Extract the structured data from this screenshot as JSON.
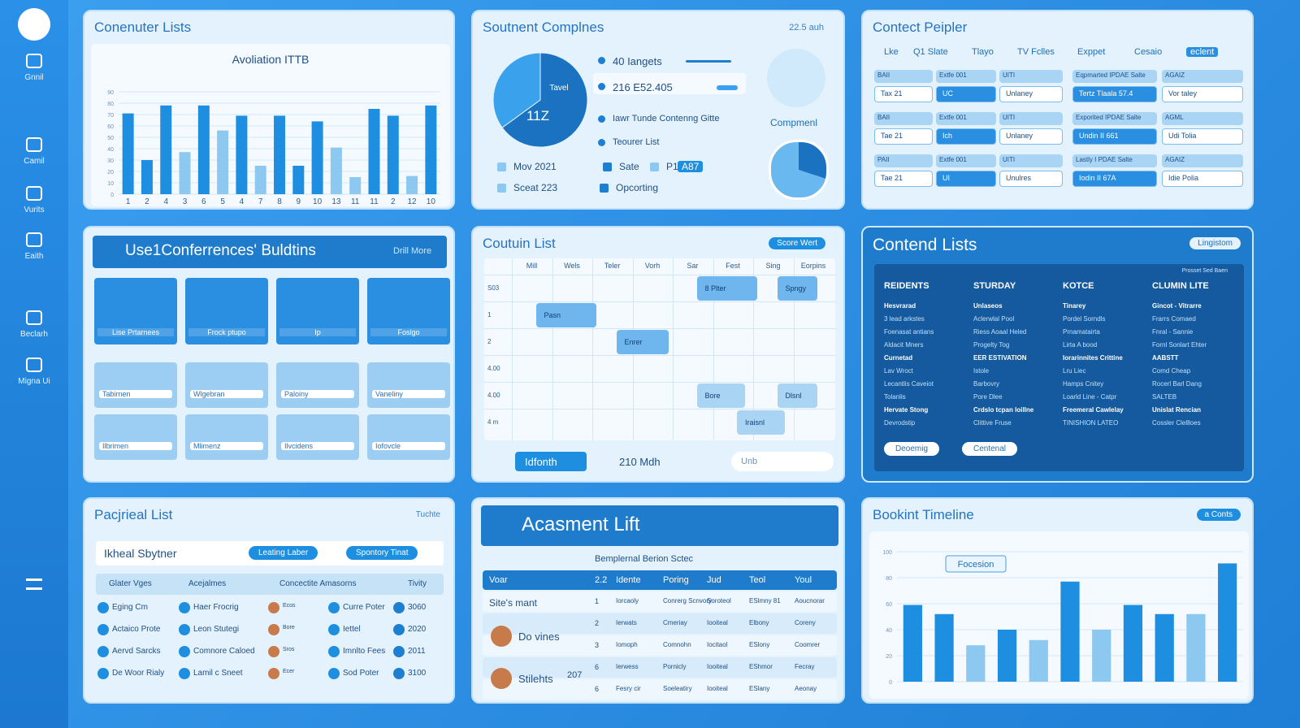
{
  "sidebar": [
    "Gnnil",
    "Camil",
    "Vurits",
    "Eaith",
    "Beclarh",
    "Migna Ui"
  ],
  "computer_lists": {
    "title": "Conenuter Lists"
  },
  "complines": {
    "title": "Soutnent Complnes",
    "badge": "22.5 auh",
    "items": [
      "40 Iangets",
      "216 E52.405",
      "Iawr Tunde Contenng Gitte",
      "Teourer List"
    ],
    "legend": [
      "Mov 2021",
      "Sate",
      "P1",
      "A87",
      "Sceat 223",
      "Opcorting"
    ],
    "side_label": "Compmenl"
  },
  "people": {
    "title": "Contect Peipler",
    "tabs": [
      "Lke",
      "Q1 Slate",
      "Tlayo",
      "TV Fclles",
      "Exppet",
      "Cesaio",
      "eclent"
    ],
    "headers": [
      [
        "BAII",
        "Extfe 001",
        "UITI",
        "Eqpmarted IPDAE Salte",
        "AGAIZ"
      ],
      [
        "BAII",
        "Extfe 001",
        "UITI",
        "Exporited IPDAE Salte",
        "AGML"
      ],
      [
        "PAII",
        "Extfe 001",
        "UITI",
        "Lastly I PDAE Salte",
        "AGAIZ"
      ]
    ],
    "fields": [
      [
        "Tax 21",
        "UC",
        "Unlaney",
        "Tertz Tlaala 57.4",
        "Vor taley"
      ],
      [
        "Tae 21",
        "Ich",
        "Unlaney",
        "Undin II 661",
        "Udi Tolia"
      ],
      [
        "Tae 21",
        "UI",
        "Unulres",
        "Iodin II 67A",
        "Idie Polia"
      ]
    ]
  },
  "conferences": {
    "title": "Use1Conferrences' Buldtins",
    "link": "Drill More",
    "tiles": [
      "Lise Prtarnees",
      "Frock ptupo",
      "Ip",
      "Foslgo"
    ],
    "cards": [
      "Tabirnen",
      "Wlgebran",
      "Paloiny",
      "Vaneliny",
      "Ilbrimen",
      "Mlimenz",
      "Ilvcidens",
      "Iofovcle"
    ]
  },
  "calendar": {
    "title": "Coutuin List",
    "button": "Score Wert",
    "days": [
      "Mill",
      "Wels",
      "Teler",
      "Vorh",
      "Sar",
      "Fest",
      "Sing",
      "Eorpins"
    ],
    "rows": [
      "S03",
      "1",
      "2",
      "4.00",
      "4.00",
      "4 m"
    ],
    "events": [
      "8 Plter",
      "Spngy",
      "Pasn",
      "Enrer",
      "Bore",
      "Iraisnl",
      "Dlsnl"
    ],
    "footer": [
      "Idfonth",
      "210 Mdh",
      "Unb"
    ]
  },
  "contend": {
    "title": "Contend Lists",
    "button": "Lingistom",
    "note": "Prosset Sed Baen",
    "columns": [
      {
        "head": "REIDENTS",
        "lines": [
          "Hesvrarad",
          "3 lead arkstes",
          "Foenasat antians",
          "Aldacit Mners",
          "Curnetad",
          "Lav Wroct",
          "Lecantlis Caveiot",
          "Tolanlis",
          "Hervate Stong",
          "Devrodstip"
        ]
      },
      {
        "head": "STURDAY",
        "lines": [
          "Unlaseos",
          "Aclerwlal Pool",
          "Riess Aoaal Heled",
          "Progelty Tog",
          "EER ESTIVATION",
          "Istole",
          "Barbovry",
          "Pore Dlee",
          "Crdslo tcpan loillne",
          "Clittive Fruse"
        ]
      },
      {
        "head": "KOTCE",
        "lines": [
          "Tinarey",
          "Pordel Sorndls",
          "Prnamatairta",
          "Lirta A bood",
          "Iorarinnites Crittine",
          "Lru Liec",
          "Hamps Cnitey",
          "Loarld Line - Catpr",
          "Freemeral Cawlelay",
          "TINISHION LATEO"
        ]
      },
      {
        "head": "CLUMIN LITE",
        "lines": [
          "Gincot - Vitrarre",
          "Frarrs Comaed",
          "Fnral - Sannie",
          "Fornl Sonlart Ehter",
          "AABSTT",
          "Comd Cheap",
          "Rocerl Barl Dang",
          "SALTEB",
          "Unislat Rencian",
          "Cossler Clellloes"
        ]
      }
    ],
    "buttons": [
      "Deoemig",
      "Centenal"
    ]
  },
  "pacjrieal": {
    "title": "Pacjrieal List",
    "menu": "Tuchte",
    "search": "Ikheal Sbytner",
    "buttons": [
      "Leating Laber",
      "Spontory Tinat"
    ],
    "headers": [
      "Glater Vges",
      "Acejalmes",
      "Concectite Amasorns",
      "Tivity"
    ],
    "rows": [
      [
        "Eging Cm",
        "Haer Frocrig",
        "Ecos",
        "Curre Poter",
        "3060"
      ],
      [
        "Actaico Prote",
        "Leon Stutegi",
        "Bore",
        "Iettel",
        "2020"
      ],
      [
        "Aervd Sarcks",
        "Comnore Caloed",
        "Sros",
        "Imnlto Fees",
        "2011"
      ],
      [
        "De Woor Rialy",
        "Lamil c Sneet",
        "Ecer",
        "Sod Poter",
        "3100"
      ]
    ]
  },
  "assessment": {
    "title": "Acasment Lift",
    "subtitle": "Bemplernal Berion Sctec",
    "headers": [
      "Voar",
      "2.2",
      "Idente",
      "Poring",
      "Jud",
      "Teol",
      "Youl"
    ],
    "names": [
      "Site's mant",
      "Do vines",
      "Stilehts",
      "207"
    ],
    "rows": [
      [
        "1",
        "Iorcaoly",
        "Conrerg Scnvory",
        "Soroteol",
        "ESlmny 81",
        "Aoucnorar"
      ],
      [
        "2",
        "Ierwats",
        "Cmeriay",
        "Iooiteal",
        "Elbony",
        "Coreny"
      ],
      [
        "3",
        "Iomoph",
        "Comnohn",
        "Iocitaol",
        "ESlony",
        "Coomrer"
      ],
      [
        "6",
        "Ierwess",
        "Pornicly",
        "Iooiteal",
        "EShmor",
        "Fecray"
      ],
      [
        "6",
        "Fesry cir",
        "Soeleatiry",
        "Iooiteal",
        "ESlany",
        "Aeonay"
      ]
    ]
  },
  "timeline": {
    "title": "Bookint Timeline",
    "button": "a Conts"
  },
  "chart_data": [
    {
      "type": "bar",
      "title": "Avoliation ITTB",
      "categories": [
        "1",
        "2",
        "4",
        "3",
        "6",
        "5",
        "4",
        "7",
        "8",
        "9",
        "10",
        "13",
        "11",
        "11",
        "2",
        "12",
        "10"
      ],
      "values": [
        71,
        30,
        78,
        37,
        78,
        56,
        69,
        25,
        69,
        25,
        64,
        41,
        15,
        75,
        69,
        16,
        78
      ],
      "colors": [
        "#1e8fe0",
        "#1e8fe0",
        "#1e8fe0",
        "#8cc8f0",
        "#1e8fe0",
        "#8cc8f0",
        "#1e8fe0",
        "#8cc8f0",
        "#1e8fe0",
        "#1e8fe0",
        "#1e8fe0",
        "#8cc8f0",
        "#8cc8f0",
        "#1e8fe0",
        "#1e8fe0",
        "#8cc8f0",
        "#1e8fe0"
      ],
      "ylim": [
        0,
        100
      ],
      "yticks": [
        0,
        10,
        20,
        30,
        40,
        50,
        60,
        70,
        80,
        90
      ],
      "grid": true
    },
    {
      "type": "bar",
      "annotation": "Focesion",
      "values": [
        59,
        52,
        28,
        40,
        32,
        77,
        40,
        59,
        52,
        52,
        91
      ],
      "colors": [
        "#1e8fe0",
        "#1e8fe0",
        "#8cc8f0",
        "#1e8fe0",
        "#8cc8f0",
        "#1e8fe0",
        "#8cc8f0",
        "#1e8fe0",
        "#1e8fe0",
        "#8cc8f0",
        "#1e8fe0"
      ],
      "ylim": [
        0,
        100
      ],
      "yticks": [
        0,
        20,
        40,
        60,
        80,
        100
      ],
      "grid": true
    },
    {
      "type": "pie",
      "labels": [
        "Tavel",
        "11Z"
      ],
      "values": [
        65,
        35
      ],
      "colors": [
        "#1a72c0",
        "#3aa2ec"
      ]
    }
  ]
}
